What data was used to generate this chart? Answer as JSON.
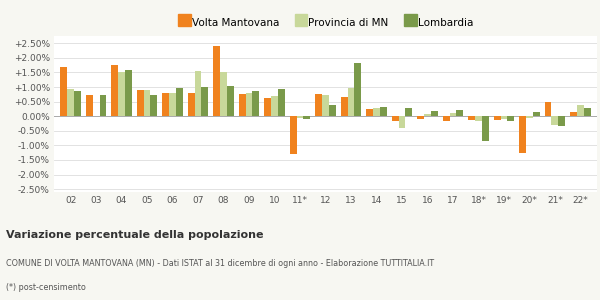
{
  "years": [
    "02",
    "03",
    "04",
    "05",
    "06",
    "07",
    "08",
    "09",
    "10",
    "11*",
    "12",
    "13",
    "14",
    "15",
    "16",
    "17",
    "18*",
    "19*",
    "20*",
    "21*",
    "22*"
  ],
  "volta_mantovana": [
    1.7,
    0.72,
    1.75,
    0.9,
    0.8,
    0.8,
    2.42,
    0.75,
    0.62,
    -1.3,
    0.75,
    0.65,
    0.25,
    -0.15,
    -0.08,
    -0.17,
    -0.12,
    -0.12,
    -1.25,
    0.48,
    0.15
  ],
  "provincia_mn": [
    0.92,
    0.0,
    1.52,
    0.9,
    0.78,
    1.55,
    1.5,
    0.78,
    0.68,
    -0.05,
    0.72,
    0.97,
    0.27,
    -0.42,
    0.08,
    0.12,
    -0.15,
    -0.08,
    -0.07,
    -0.3,
    0.38
  ],
  "lombardia": [
    0.85,
    0.72,
    1.58,
    0.72,
    0.96,
    1.0,
    1.05,
    0.85,
    0.92,
    -0.1,
    0.4,
    1.83,
    0.3,
    0.28,
    0.18,
    0.22,
    -0.85,
    -0.18,
    0.15,
    -0.32,
    0.28
  ],
  "color_volta": "#f0821e",
  "color_provincia": "#c8d89a",
  "color_lombardia": "#7a9a4a",
  "bg_color": "#f7f7f2",
  "plot_bg": "#ffffff",
  "ylim": [
    -2.6,
    2.75
  ],
  "yticks": [
    -2.5,
    -2.0,
    -1.5,
    -1.0,
    -0.5,
    0.0,
    0.5,
    1.0,
    1.5,
    2.0,
    2.5
  ],
  "title_bold": "Variazione percentuale della popolazione",
  "subtitle1": "COMUNE DI VOLTA MANTOVANA (MN) - Dati ISTAT al 31 dicembre di ogni anno - Elaborazione TUTTITALIA.IT",
  "subtitle2": "(*) post-censimento",
  "legend_labels": [
    "Volta Mantovana",
    "Provincia di MN",
    "Lombardia"
  ]
}
